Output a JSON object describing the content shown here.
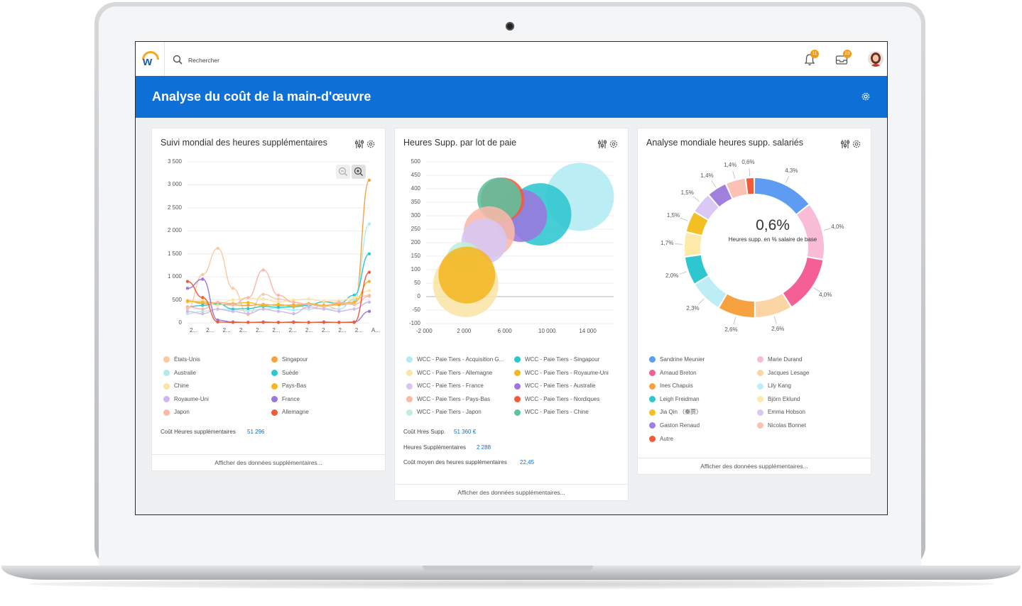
{
  "header": {
    "search_placeholder": "Rechercher",
    "notifications_count": "11",
    "inbox_count": "23"
  },
  "banner": {
    "title": "Analyse du coût de la main-d'œuvre"
  },
  "colors": {
    "brand_blue": "#0e6fd6",
    "badge_orange": "#f39c12"
  },
  "card1": {
    "title": "Suivi mondial des heures supplémentaires",
    "stat_label": "Coût Heures supplémentaires",
    "stat_value": "51 296",
    "footer": "Afficher des données supplémentaires...",
    "legend": [
      {
        "label": "États-Unis",
        "color": "#f9c9a3"
      },
      {
        "label": "Singapour",
        "color": "#f7a240"
      },
      {
        "label": "Australie",
        "color": "#b2ecea"
      },
      {
        "label": "Suède",
        "color": "#2ec6cf"
      },
      {
        "label": "Chine",
        "color": "#fbe4a6"
      },
      {
        "label": "Pays-Bas",
        "color": "#f2b722"
      },
      {
        "label": "Royaume-Uni",
        "color": "#cdb8ef"
      },
      {
        "label": "France",
        "color": "#9b77dd"
      },
      {
        "label": "Japon",
        "color": "#f9b8a8"
      },
      {
        "label": "Allemagne",
        "color": "#f25b3a"
      }
    ]
  },
  "card2": {
    "title": "Heures Supp. par lot de paie",
    "stats": [
      {
        "label": "Coût Hres Supp.",
        "value": "51 360 €"
      },
      {
        "label": "Heures Supplémentaires",
        "value": "2 288"
      },
      {
        "label": "Coût moyen des heures supplémentaires",
        "value": "22,45"
      }
    ],
    "footer": "Afficher des données supplémentaires...",
    "legend": [
      {
        "label": "WCC - Paie Tiers - Acquisition G...",
        "color": "#b2ecf2"
      },
      {
        "label": "WCC - Paie Tiers - Singapour",
        "color": "#2ec6cf"
      },
      {
        "label": "WCC - Paie Tiers - Allemagne",
        "color": "#fbe4a6"
      },
      {
        "label": "WCC - Paie Tiers - Royaume-Uni",
        "color": "#f2b722"
      },
      {
        "label": "WCC - Paie Tiers - France",
        "color": "#d7c6f3"
      },
      {
        "label": "WCC - Paie Tiers - Australie",
        "color": "#9b77dd"
      },
      {
        "label": "WCC - Paie Tiers - Pays-Bas",
        "color": "#f9b8a8"
      },
      {
        "label": "WCC - Paie Tiers - Nordiques",
        "color": "#f25b3a"
      },
      {
        "label": "WCC - Paie Tiers - Japon",
        "color": "#bfeedd"
      },
      {
        "label": "WCC - Paie Tiers - Chine",
        "color": "#5cc2a0"
      }
    ]
  },
  "card3": {
    "title": "Analyse mondiale heures supp. salariés",
    "center_value": "0,6%",
    "center_label": "Heures supp. en % salaire de base",
    "footer": "Afficher des données supplémentaires...",
    "legend": [
      {
        "label": "Sandrine Meunier",
        "color": "#5d9cf2"
      },
      {
        "label": "Marie Durand",
        "color": "#f9bcd7"
      },
      {
        "label": "Arnaud Breton",
        "color": "#f45f95"
      },
      {
        "label": "Jacques Lesage",
        "color": "#fcd5a5"
      },
      {
        "label": "Ines Chapuis",
        "color": "#f7a240"
      },
      {
        "label": "Lily Kang",
        "color": "#bdeef5"
      },
      {
        "label": "Leigh Freidman",
        "color": "#2ec6cf"
      },
      {
        "label": "Björn Eklund",
        "color": "#fde9a8"
      },
      {
        "label": "Jia Qin （秦贾）",
        "color": "#f2c022"
      },
      {
        "label": "Emma Hobson",
        "color": "#dbc8f5"
      },
      {
        "label": "Gaston Renaud",
        "color": "#a17fdc"
      },
      {
        "label": "Nicolas Bonnet",
        "color": "#fbc1b4"
      },
      {
        "label": "Autre",
        "color": "#f25b3a"
      }
    ]
  },
  "chart_data": [
    {
      "type": "line",
      "title": "Suivi mondial des heures supplémentaires",
      "ylim": [
        0,
        3500
      ],
      "y_ticks": [
        "3 500",
        "3 000",
        "2 500",
        "2 000",
        "1 500",
        "1 000",
        "500",
        "0"
      ],
      "x_ticks": [
        "2...",
        "2...",
        "2...",
        "2...",
        "2...",
        "2...",
        "2...",
        "2...",
        "2...",
        "2...",
        "2...",
        "A..."
      ],
      "series": [
        {
          "name": "États-Unis",
          "color": "#f9c9a3",
          "values": [
            300,
            1050,
            1620,
            750,
            180,
            620,
            520,
            450,
            300,
            380,
            300,
            520,
            600
          ]
        },
        {
          "name": "Singapour",
          "color": "#f7a240",
          "values": [
            480,
            420,
            400,
            390,
            380,
            400,
            380,
            390,
            400,
            380,
            390,
            420,
            3100
          ]
        },
        {
          "name": "Australie",
          "color": "#b2ecea",
          "values": [
            200,
            250,
            300,
            280,
            260,
            300,
            320,
            280,
            300,
            310,
            300,
            500,
            2150
          ]
        },
        {
          "name": "Suède",
          "color": "#2ec6cf",
          "values": [
            350,
            380,
            420,
            300,
            310,
            360,
            340,
            350,
            380,
            460,
            420,
            600,
            1500
          ]
        },
        {
          "name": "Chine",
          "color": "#fbe4a6",
          "values": [
            450,
            480,
            380,
            500,
            540,
            520,
            450,
            500,
            520,
            470,
            480,
            550,
            700
          ]
        },
        {
          "name": "Pays-Bas",
          "color": "#f2b722",
          "values": [
            470,
            450,
            440,
            420,
            440,
            380,
            400,
            360,
            420,
            380,
            420,
            450,
            900
          ]
        },
        {
          "name": "Royaume-Uni",
          "color": "#cdb8ef",
          "values": [
            250,
            200,
            300,
            250,
            200,
            300,
            250,
            200,
            350,
            300,
            250,
            300,
            450
          ]
        },
        {
          "name": "France",
          "color": "#9b77dd",
          "values": [
            750,
            950,
            60,
            20,
            10,
            20,
            10,
            20,
            10,
            20,
            10,
            20,
            250
          ]
        },
        {
          "name": "Japon",
          "color": "#f9b8a8",
          "values": [
            350,
            300,
            450,
            400,
            550,
            1150,
            600,
            450,
            400,
            350,
            450,
            400,
            580
          ]
        },
        {
          "name": "Allemagne",
          "color": "#f25b3a",
          "values": [
            900,
            550,
            20,
            10,
            10,
            10,
            10,
            10,
            10,
            10,
            10,
            10,
            1100
          ]
        }
      ]
    },
    {
      "type": "scatter",
      "title": "Heures Supp. par lot de paie",
      "xlim": [
        -2000,
        16000
      ],
      "ylim": [
        -100,
        500
      ],
      "x_ticks": [
        "-2 000",
        "2 000",
        "6 000",
        "10 000",
        "14 000"
      ],
      "y_ticks": [
        "500",
        "450",
        "400",
        "350",
        "300",
        "250",
        "200",
        "150",
        "100",
        "50",
        "0",
        "-50",
        "-100"
      ],
      "series": [
        {
          "name": "WCC - Paie Tiers - Acquisition G...",
          "color": "#b2ecf2",
          "x": 13100,
          "y": 370,
          "size": 48
        },
        {
          "name": "WCC - Paie Tiers - Singapour",
          "color": "#2ec6cf",
          "x": 9200,
          "y": 305,
          "size": 44
        },
        {
          "name": "WCC - Paie Tiers - Allemagne",
          "color": "#fbe4a6",
          "x": 1900,
          "y": 45,
          "size": 46
        },
        {
          "name": "WCC - Paie Tiers - Royaume-Uni",
          "color": "#f2b722",
          "x": 2000,
          "y": 80,
          "size": 40
        },
        {
          "name": "WCC - Paie Tiers - France",
          "color": "#d7c6f3",
          "x": 3700,
          "y": 205,
          "size": 32
        },
        {
          "name": "WCC - Paie Tiers - Australie",
          "color": "#9b77dd",
          "x": 7300,
          "y": 300,
          "size": 37
        },
        {
          "name": "WCC - Paie Tiers - Pays-Bas",
          "color": "#f9b8a8",
          "x": 4200,
          "y": 240,
          "size": 36
        },
        {
          "name": "WCC - Paie Tiers - Nordiques",
          "color": "#f25b3a",
          "x": 5500,
          "y": 360,
          "size": 31
        },
        {
          "name": "WCC - Paie Tiers - Japon",
          "color": "#bfeedd",
          "x": 1700,
          "y": 140,
          "size": 24
        },
        {
          "name": "WCC - Paie Tiers - Chine",
          "color": "#5cc2a0",
          "x": 5200,
          "y": 360,
          "size": 31
        }
      ]
    },
    {
      "type": "pie",
      "title": "Analyse mondiale heures supp. salariés",
      "slices": [
        {
          "label": "4,3%",
          "value": 4.3,
          "color": "#5d9cf2"
        },
        {
          "label": "4,0%",
          "value": 4.0,
          "color": "#f9bcd7"
        },
        {
          "label": "4,0%",
          "value": 4.0,
          "color": "#f45f95"
        },
        {
          "label": "2,6%",
          "value": 2.6,
          "color": "#fcd5a5"
        },
        {
          "label": "2,6%",
          "value": 2.6,
          "color": "#f7a240"
        },
        {
          "label": "2,3%",
          "value": 2.3,
          "color": "#bdeef5"
        },
        {
          "label": "2,0%",
          "value": 2.0,
          "color": "#2ec6cf"
        },
        {
          "label": "1,7%",
          "value": 1.7,
          "color": "#fde9a8"
        },
        {
          "label": "1,5%",
          "value": 1.5,
          "color": "#f2c022"
        },
        {
          "label": "1,5%",
          "value": 1.5,
          "color": "#dbc8f5"
        },
        {
          "label": "1,4%",
          "value": 1.4,
          "color": "#a17fdc"
        },
        {
          "label": "1,4%",
          "value": 1.4,
          "color": "#fbc1b4"
        },
        {
          "label": "0,6%",
          "value": 0.6,
          "color": "#f25b3a"
        }
      ]
    }
  ]
}
